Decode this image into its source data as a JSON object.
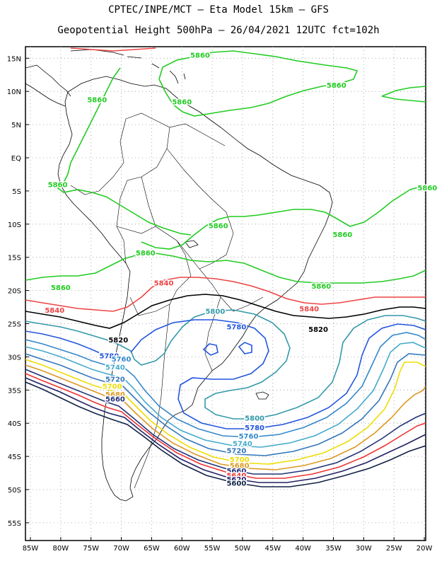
{
  "header": {
    "line1": "CPTEC/INPE/MCT –  Eta Model 15km – GFS",
    "line2": "Geopotential Height 500hPa – 26/04/2021 12UTC fct=102h"
  },
  "axes": {
    "lon_labels": [
      "85W",
      "80W",
      "75W",
      "70W",
      "65W",
      "60W",
      "55W",
      "50W",
      "45W",
      "40W",
      "35W",
      "30W",
      "25W",
      "20W"
    ],
    "lat_labels": [
      "15N",
      "10N",
      "5N",
      "EQ",
      "5S",
      "10S",
      "15S",
      "20S",
      "25S",
      "30S",
      "35S",
      "40S",
      "45S",
      "50S",
      "55S"
    ]
  },
  "colors": {
    "c5860": "#22cc22",
    "c5840": "#ee4444",
    "c5820": "#000000",
    "c5800": "#3399aa",
    "c5780": "#2255dd",
    "c5760": "#3388cc",
    "c5740": "#44aacc",
    "c5720": "#3377bb",
    "c5700": "#eedd00",
    "c5680": "#dd9922",
    "c5660": "#223377",
    "c5640": "#ee3333",
    "c5620": "#222266",
    "c5600": "#112244"
  },
  "contour_labels": [
    {
      "text": "5860",
      "color": "c5860",
      "lon": -57,
      "lat": 15.5
    },
    {
      "text": "5860",
      "color": "c5860",
      "lon": -34.5,
      "lat": 11
    },
    {
      "text": "5860",
      "color": "c5860",
      "lon": -74,
      "lat": 8.8
    },
    {
      "text": "5860",
      "color": "c5860",
      "lon": -60,
      "lat": 8.5
    },
    {
      "text": "5860",
      "color": "c5860",
      "lon": -80.5,
      "lat": -4
    },
    {
      "text": "5860",
      "color": "c5860",
      "lon": -19.5,
      "lat": -4.5
    },
    {
      "text": "5860",
      "color": "c5860",
      "lon": -54,
      "lat": -10.2
    },
    {
      "text": "5860",
      "color": "c5860",
      "lon": -33.5,
      "lat": -11.5
    },
    {
      "text": "5860",
      "color": "c5860",
      "lon": -66,
      "lat": -14.3
    },
    {
      "text": "5860",
      "color": "c5860",
      "lon": -80,
      "lat": -19.5
    },
    {
      "text": "5860",
      "color": "c5860",
      "lon": -37,
      "lat": -19.3
    },
    {
      "text": "5840",
      "color": "c5840",
      "lon": -63,
      "lat": -18.8
    },
    {
      "text": "5840",
      "color": "c5840",
      "lon": -81,
      "lat": -22.9
    },
    {
      "text": "5840",
      "color": "c5840",
      "lon": -39,
      "lat": -22.7
    },
    {
      "text": "5820",
      "color": "c5820",
      "lon": -70.5,
      "lat": -27.4
    },
    {
      "text": "5820",
      "color": "c5820",
      "lon": -37.5,
      "lat": -25.8
    },
    {
      "text": "5800",
      "color": "c5800",
      "lon": -54.5,
      "lat": -23.1
    },
    {
      "text": "5780",
      "color": "c5780",
      "lon": -51,
      "lat": -25.4
    },
    {
      "text": "5780",
      "color": "c5780",
      "lon": -72,
      "lat": -29.8
    },
    {
      "text": "5760",
      "color": "c5760",
      "lon": -70,
      "lat": -30.3
    },
    {
      "text": "5740",
      "color": "c5740",
      "lon": -71,
      "lat": -31.5
    },
    {
      "text": "5720",
      "color": "c5720",
      "lon": -71,
      "lat": -33.3
    },
    {
      "text": "5700",
      "color": "c5700",
      "lon": -71.5,
      "lat": -34.4
    },
    {
      "text": "5680",
      "color": "c5680",
      "lon": -71,
      "lat": -35.6
    },
    {
      "text": "5660",
      "color": "c5660",
      "lon": -71,
      "lat": -36.3
    },
    {
      "text": "5800",
      "color": "c5800",
      "lon": -48,
      "lat": -39.2
    },
    {
      "text": "5780",
      "color": "c5780",
      "lon": -48,
      "lat": -40.6
    },
    {
      "text": "5760",
      "color": "c5760",
      "lon": -49,
      "lat": -41.9
    },
    {
      "text": "5740",
      "color": "c5740",
      "lon": -50,
      "lat": -43.0
    },
    {
      "text": "5720",
      "color": "c5720",
      "lon": -51,
      "lat": -44.1
    },
    {
      "text": "5700",
      "color": "c5700",
      "lon": -50.5,
      "lat": -45.4
    },
    {
      "text": "5680",
      "color": "c5680",
      "lon": -50.5,
      "lat": -46.3
    },
    {
      "text": "5660",
      "color": "c5660",
      "lon": -51,
      "lat": -47.1
    },
    {
      "text": "5640",
      "color": "c5640",
      "lon": -51,
      "lat": -47.8
    },
    {
      "text": "5620",
      "color": "c5620",
      "lon": -51,
      "lat": -48.4
    },
    {
      "text": "5600",
      "color": "c5600",
      "lon": -51,
      "lat": -49.0
    }
  ]
}
